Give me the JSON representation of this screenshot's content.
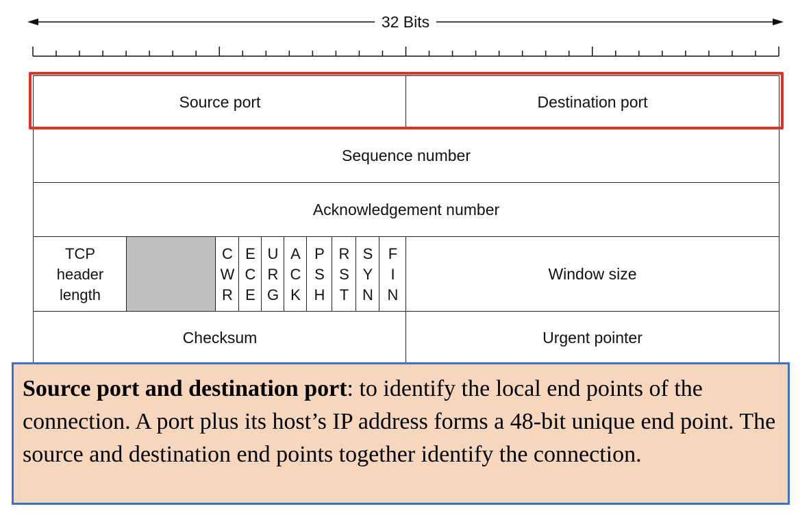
{
  "header": {
    "width_label": "32 Bits"
  },
  "fields": {
    "source_port": "Source port",
    "destination_port": "Destination port",
    "sequence_number": "Sequence number",
    "acknowledgement_number": "Acknowledgement number",
    "tcp_header_length": [
      "TCP",
      "header",
      "length"
    ],
    "flags": [
      [
        "C",
        "W",
        "R"
      ],
      [
        "E",
        "C",
        "E"
      ],
      [
        "U",
        "R",
        "G"
      ],
      [
        "A",
        "C",
        "K"
      ],
      [
        "P",
        "S",
        "H"
      ],
      [
        "R",
        "S",
        "T"
      ],
      [
        "S",
        "Y",
        "N"
      ],
      [
        "F",
        "I",
        "N"
      ]
    ],
    "window_size": "Window size",
    "checksum": "Checksum",
    "urgent_pointer": "Urgent pointer"
  },
  "note": {
    "bold": "Source port and destination port",
    "text": ": to identify the local end points of the connection. A port plus its host’s IP address forms a 48-bit unique end point. The source and destination end points together identify the connection."
  },
  "colors": {
    "highlight_border": "#e03028",
    "note_background": "#f6d6bd",
    "note_border": "#3b73c9",
    "reserved_fill": "#c0c0c0"
  }
}
